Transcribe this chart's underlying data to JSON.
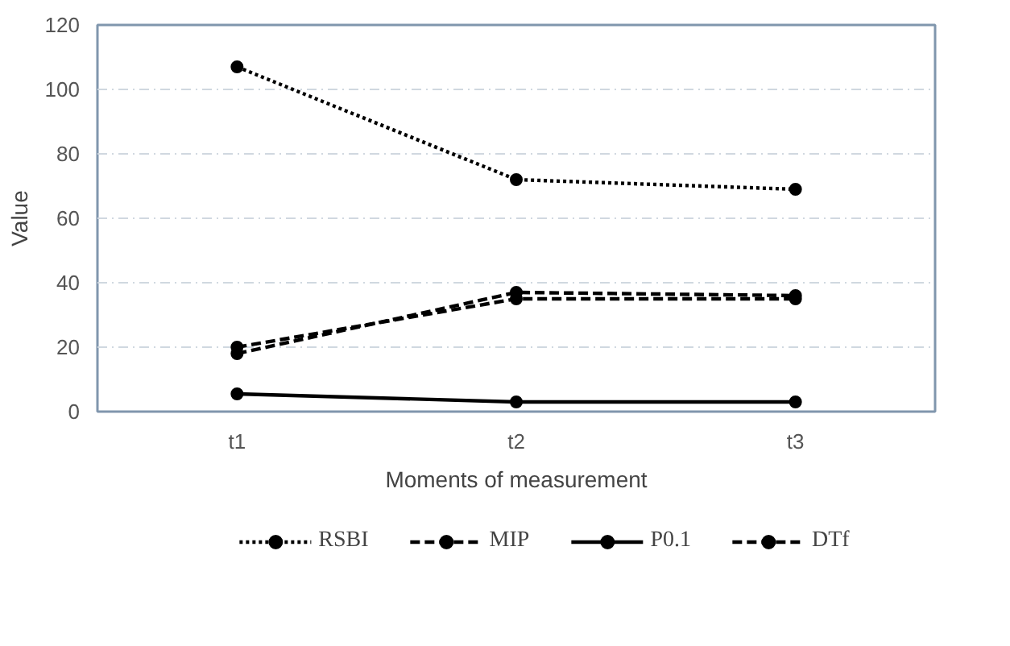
{
  "chart_data": {
    "type": "line",
    "xlabel": "Moments of measurement",
    "ylabel": "Value",
    "categories": [
      "t1",
      "t2",
      "t3"
    ],
    "series": [
      {
        "name": "RSBI",
        "color": "#000000",
        "values": [
          107,
          72,
          69
        ],
        "line_style": "dotted"
      },
      {
        "name": "MIP",
        "color": "#000000",
        "values": [
          18,
          37,
          36
        ],
        "line_style": "dashed"
      },
      {
        "name": "P0.1",
        "color": "#000000",
        "values": [
          5.5,
          3,
          3
        ],
        "line_style": "solid"
      },
      {
        "name": "DTf",
        "color": "#000000",
        "values": [
          20,
          35,
          35
        ],
        "line_style": "dashed"
      }
    ],
    "ylim": [
      0,
      120
    ],
    "yticks": [
      0,
      20,
      40,
      60,
      80,
      100,
      120
    ],
    "grid": "y",
    "legend": "bottom",
    "marker": "circle"
  }
}
